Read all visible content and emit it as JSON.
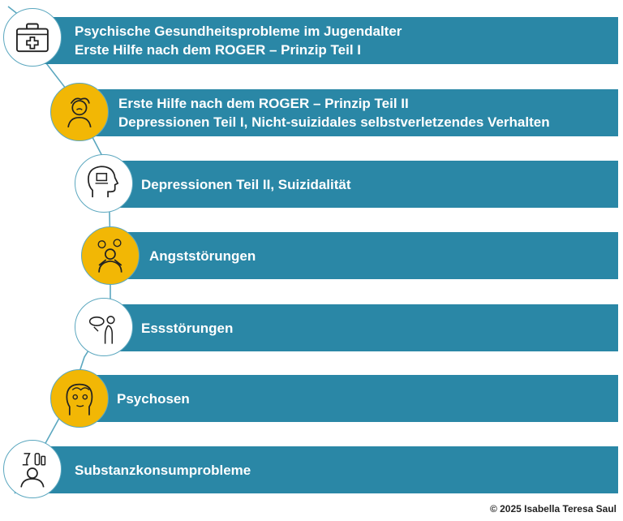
{
  "colors": {
    "bar": "#2a87a6",
    "connector": "#5ba7bf",
    "highlight_circle": "#f2b705",
    "plain_circle": "#ffffff",
    "bar_text": "#ffffff"
  },
  "steps": [
    {
      "icon": "first-aid-kit-icon",
      "circle": "white",
      "lines": [
        "Psychische Gesundheitsprobleme im Jugendalter",
        "Erste Hilfe nach dem ROGER – Prinzip Teil I"
      ]
    },
    {
      "icon": "distressed-person-icon",
      "circle": "yellow",
      "lines": [
        "Erste Hilfe nach dem ROGER – Prinzip Teil II",
        "Depressionen Teil I, Nicht-suizidales selbstverletzendes Verhalten"
      ]
    },
    {
      "icon": "head-profile-icon",
      "circle": "white",
      "lines": [
        "Depressionen Teil II, Suizidalität"
      ]
    },
    {
      "icon": "anxious-person-icon",
      "circle": "yellow",
      "lines": [
        "Angststörungen"
      ]
    },
    {
      "icon": "eating-disorder-icon",
      "circle": "white",
      "lines": [
        "Essstörungen"
      ]
    },
    {
      "icon": "psychosis-face-icon",
      "circle": "yellow",
      "lines": [
        "Psychosen"
      ]
    },
    {
      "icon": "substance-use-icon",
      "circle": "white",
      "lines": [
        "Substanzkonsumprobleme"
      ]
    }
  ],
  "copyright": "© 2025 Isabella Teresa Saul"
}
